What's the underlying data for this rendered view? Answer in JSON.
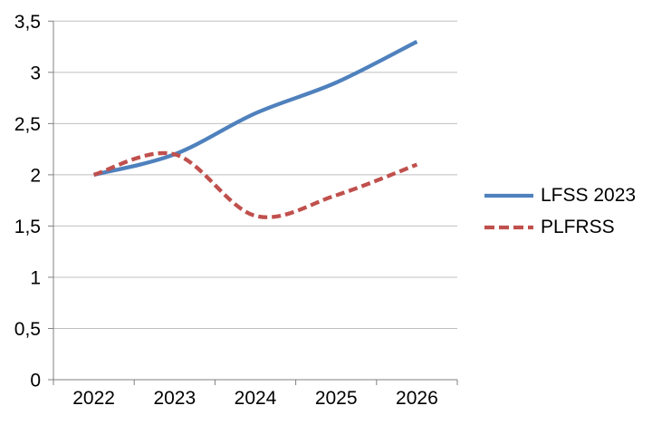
{
  "chart_data": {
    "type": "line",
    "title": "",
    "categories": [
      "2022",
      "2023",
      "2024",
      "2025",
      "2026"
    ],
    "series": [
      {
        "name": "LFSS 2023",
        "values": [
          2.0,
          2.2,
          2.6,
          2.9,
          3.3
        ],
        "color": "#4F81BD",
        "style": "solid"
      },
      {
        "name": "PLFRSS",
        "values": [
          2.0,
          2.2,
          1.6,
          1.8,
          2.1
        ],
        "color": "#C0504D",
        "style": "dashed"
      }
    ],
    "ylim": [
      0,
      3.5
    ],
    "ytick_step": 0.5,
    "ytick_labels": [
      "0",
      "0,5",
      "1",
      "1,5",
      "2",
      "2,5",
      "3",
      "3,5"
    ],
    "decimal_separator": ",",
    "grid": true,
    "smoothed": true,
    "legend_position": "right",
    "colors": {
      "axis": "#808080",
      "gridline": "#BFBFBF",
      "text": "#000000",
      "background": "#FFFFFF"
    }
  }
}
